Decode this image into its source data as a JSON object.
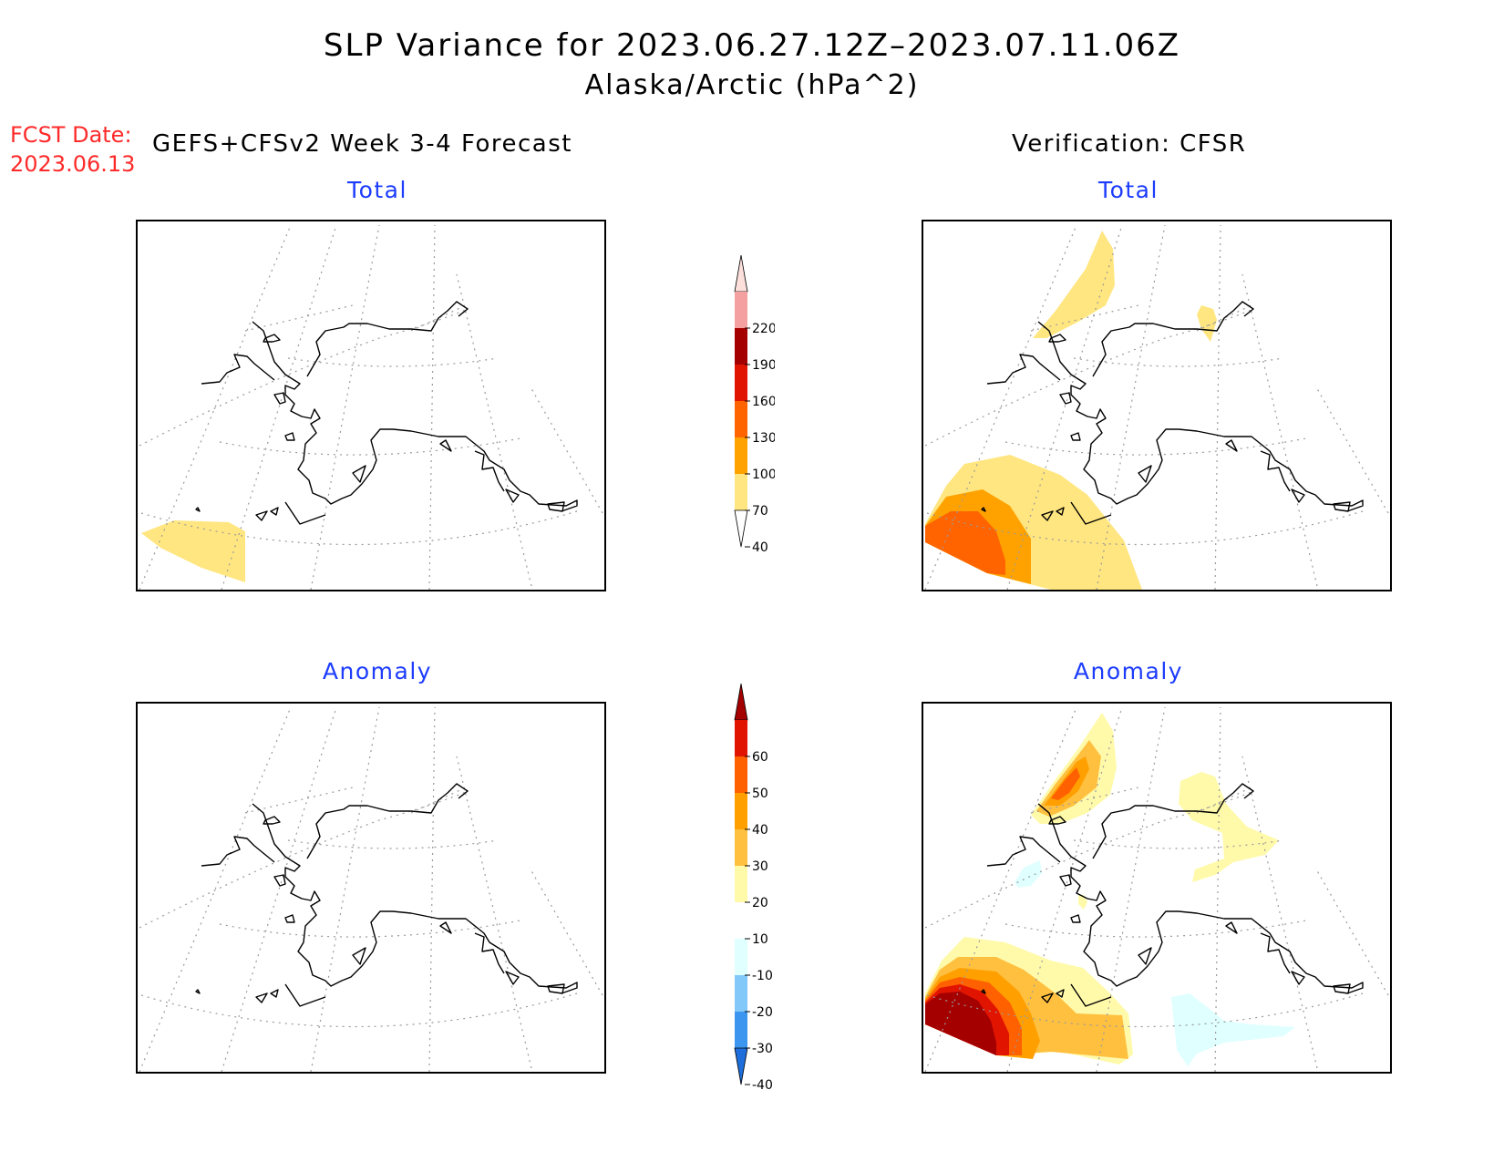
{
  "title": "SLP Variance for 2023.06.27.12Z–2023.07.11.06Z",
  "subtitle": "Alaska/Arctic (hPa^2)",
  "forecast": {
    "date_label": "FCST Date:",
    "date_value": "2023.06.13",
    "heading": "GEFS+CFSv2 Week 3-4 Forecast"
  },
  "verification": {
    "heading": "Verification: CFSR"
  },
  "panels": {
    "top_left": "Total",
    "top_right": "Total",
    "bottom_left": "Anomaly",
    "bottom_right": "Anomaly"
  },
  "colorbars": {
    "total": {
      "labels": [
        "40",
        "70",
        "100",
        "130",
        "160",
        "190",
        "220"
      ],
      "colors": [
        "#ffffff",
        "#ffe680",
        "#ffa200",
        "#ff6400",
        "#e11400",
        "#a50000",
        "#f4a0a0",
        "#fde0dc"
      ]
    },
    "anomaly": {
      "labels": [
        "-40",
        "-30",
        "-20",
        "-10",
        "10",
        "20",
        "30",
        "40",
        "50",
        "60"
      ],
      "colors": [
        "#1e6edc",
        "#3c96f0",
        "#82c8f8",
        "#e0ffff",
        "#ffffff",
        "#fffaaa",
        "#ffc040",
        "#ffa000",
        "#ff6000",
        "#e11400",
        "#a50000"
      ]
    }
  },
  "colors": {
    "title": "#000000",
    "panel_title": "#1c3cff",
    "fcst_date": "#ff2a2a",
    "coastline": "#000000",
    "graticule": "#9a9a9a"
  }
}
